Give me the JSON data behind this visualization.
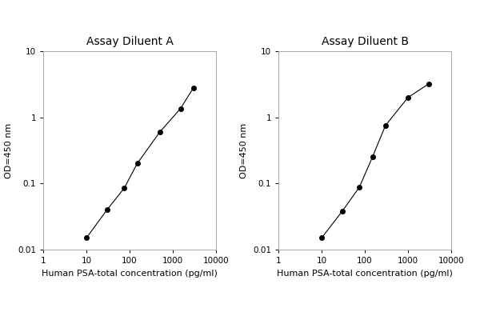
{
  "panel_A": {
    "title": "Assay Diluent A",
    "x": [
      10,
      30,
      75,
      150,
      500,
      1500,
      3000
    ],
    "y": [
      0.015,
      0.04,
      0.085,
      0.2,
      0.6,
      1.35,
      2.8
    ]
  },
  "panel_B": {
    "title": "Assay Diluent B",
    "x": [
      10,
      30,
      75,
      150,
      300,
      1000,
      3000
    ],
    "y": [
      0.015,
      0.038,
      0.088,
      0.25,
      0.75,
      2.0,
      3.2
    ]
  },
  "xlabel": "Human PSA-total concentration (pg/ml)",
  "ylabel": "OD=450 nm",
  "xlim": [
    1,
    10000
  ],
  "ylim": [
    0.01,
    10
  ],
  "xticks": [
    1,
    10,
    100,
    1000,
    10000
  ],
  "xtick_labels": [
    "1",
    "10",
    "100",
    "1000",
    "10000"
  ],
  "yticks": [
    0.01,
    0.1,
    1,
    10
  ],
  "ytick_labels": [
    "0.01",
    "0.1",
    "1",
    "10"
  ],
  "line_color": "#000000",
  "marker": "o",
  "markersize": 4,
  "linewidth": 0.8,
  "title_fontsize": 10,
  "label_fontsize": 8,
  "tick_fontsize": 7.5,
  "background_color": "#ffffff",
  "spine_color": "#aaaaaa"
}
